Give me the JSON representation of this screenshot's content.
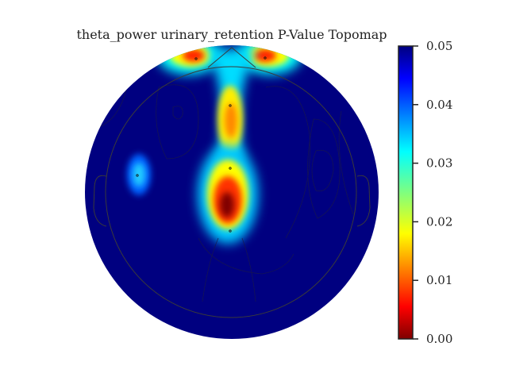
{
  "chart_data": {
    "type": "heatmap",
    "subtype": "eeg-topomap",
    "title": "theta_power urinary_retention P-Value Topomap",
    "colormap": "jet",
    "colorbar": {
      "range": [
        0.0,
        0.05
      ],
      "ticks": [
        "0.00",
        "0.01",
        "0.02",
        "0.03",
        "0.04",
        "0.05"
      ],
      "tick_values": [
        0.0,
        0.01,
        0.02,
        0.03,
        0.04,
        0.05
      ],
      "placement": "right"
    },
    "background_value": 0.05,
    "hotspots": [
      {
        "region": "frontal-left-edge",
        "min_p": 0.008
      },
      {
        "region": "frontal-right-edge",
        "min_p": 0.008
      },
      {
        "region": "midline-frontal",
        "min_p": 0.012
      },
      {
        "region": "midline-central",
        "min_p": 0.0
      },
      {
        "region": "left-temporal",
        "min_p": 0.035
      }
    ]
  }
}
